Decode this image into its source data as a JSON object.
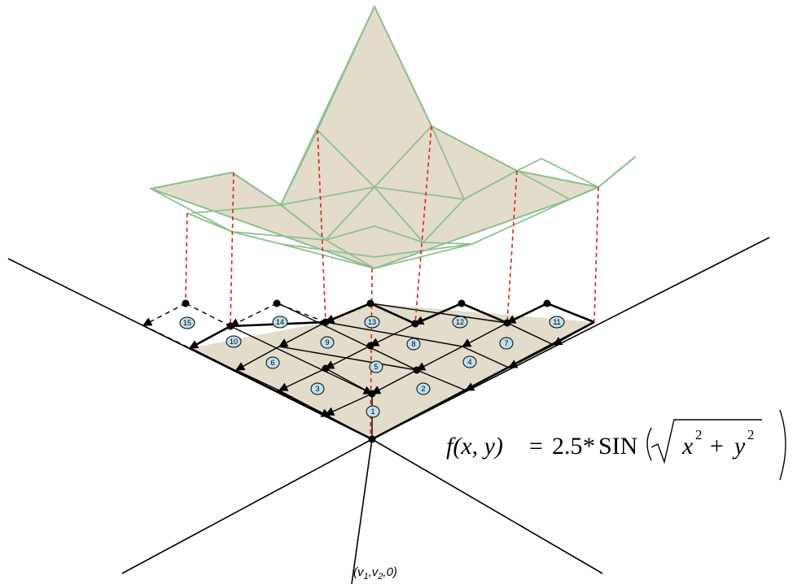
{
  "cells": [
    {
      "id": "1",
      "label": "1"
    },
    {
      "id": "2",
      "label": "2"
    },
    {
      "id": "3",
      "label": "3"
    },
    {
      "id": "4",
      "label": "4"
    },
    {
      "id": "5",
      "label": "5"
    },
    {
      "id": "6",
      "label": "6"
    },
    {
      "id": "7",
      "label": "7"
    },
    {
      "id": "8",
      "label": "8"
    },
    {
      "id": "9",
      "label": "9"
    },
    {
      "id": "10",
      "label": "10"
    },
    {
      "id": "11",
      "label": "11"
    },
    {
      "id": "12",
      "label": "12"
    },
    {
      "id": "13",
      "label": "13"
    },
    {
      "id": "14",
      "label": "14"
    },
    {
      "id": "15",
      "label": "15"
    }
  ],
  "formula": {
    "lhs": "f(x, y)",
    "equals": "=",
    "constant": "2.5",
    "op": "*",
    "func": "SIN",
    "x_term": "x",
    "plus": "+",
    "y_term": "y",
    "exponent": "2"
  },
  "origin_label": {
    "prefix": "(v",
    "sub1": "1",
    "mid": ",v",
    "sub2": "2",
    "suffix": ",0)"
  },
  "colors": {
    "surface_fill": "#e3dccb",
    "surface_edge": "#8cc08f",
    "projection_line": "#e0201f",
    "badge_fill": "#bde0ee"
  }
}
